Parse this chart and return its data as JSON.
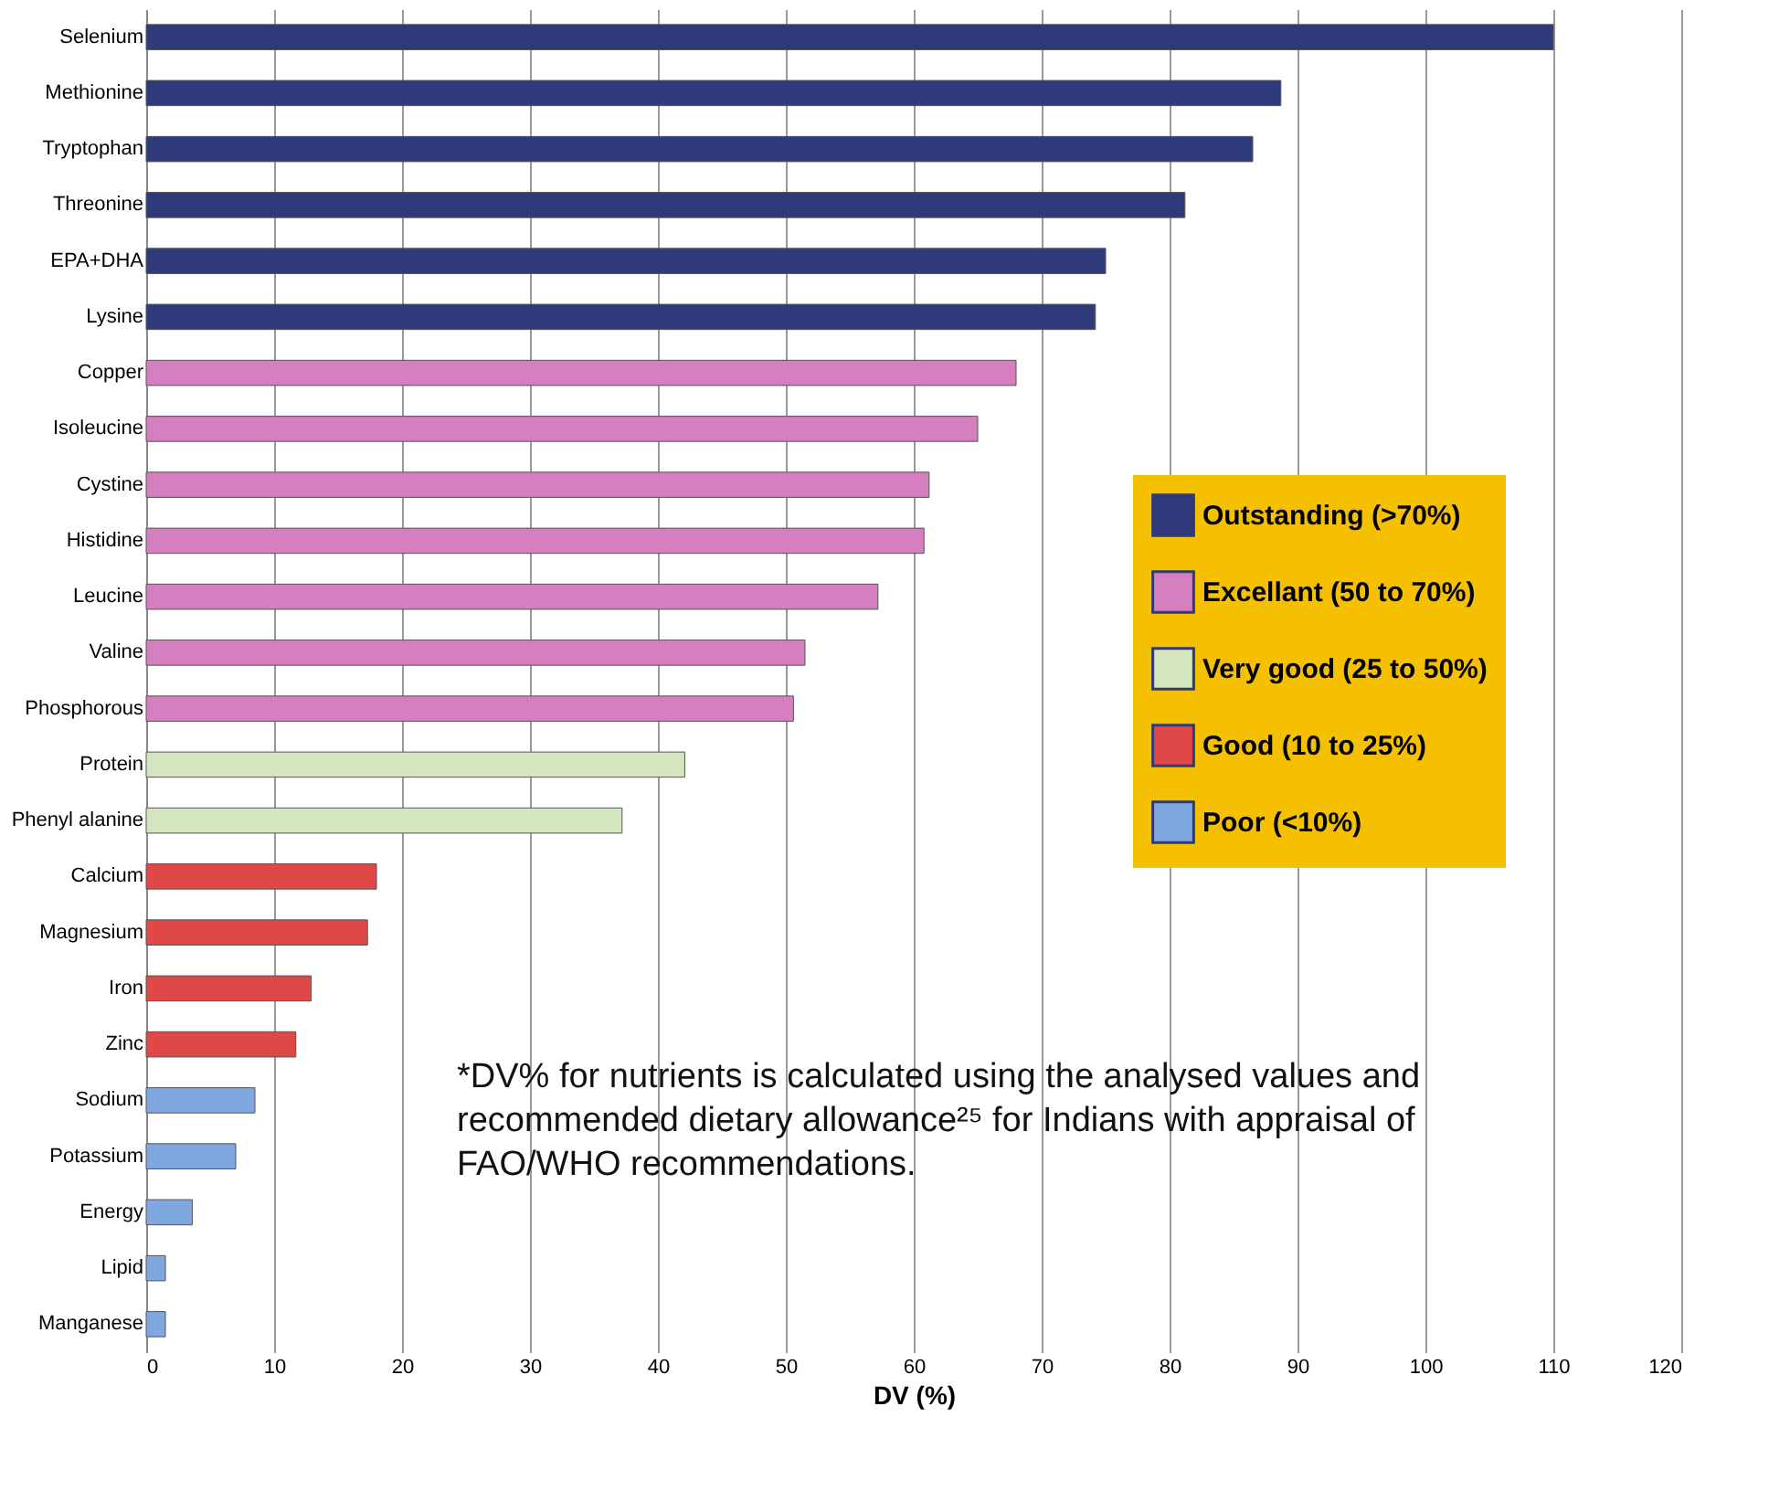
{
  "chart_data": {
    "type": "bar",
    "orientation": "horizontal",
    "xlabel": "DV (%)",
    "categories": [
      "Selenium",
      "Methionine",
      "Tryptophan",
      "Threonine",
      "EPA+DHA",
      "Lysine",
      "Copper",
      "Isoleucine",
      "Cystine",
      "Histidine",
      "Leucine",
      "Valine",
      "Phosphorous",
      "Protein",
      "Phenyl alanine",
      "Calcium",
      "Magnesium",
      "Iron",
      "Zinc",
      "Sodium",
      "Potassium",
      "Energy",
      "Lipid",
      "Manganese"
    ],
    "series": [
      {
        "name": "Outstanding (>70%)",
        "color": "#2e3a7a",
        "values": [
          110,
          88.7,
          86.5,
          81.2,
          75.0,
          74.2,
          null,
          null,
          null,
          null,
          null,
          null,
          null,
          null,
          null,
          null,
          null,
          null,
          null,
          null,
          null,
          null,
          null,
          null
        ]
      },
      {
        "name": "Excellant (50 to 70%)",
        "color": "#d67fc0",
        "values": [
          null,
          null,
          null,
          null,
          null,
          null,
          68.0,
          65.0,
          61.2,
          60.8,
          57.2,
          51.5,
          50.6,
          null,
          null,
          null,
          null,
          null,
          null,
          null,
          null,
          null,
          null,
          null
        ]
      },
      {
        "name": "Very good (25 to 50%)",
        "color": "#d3e6bd",
        "values": [
          null,
          null,
          null,
          null,
          null,
          null,
          null,
          null,
          null,
          null,
          null,
          null,
          null,
          42.1,
          37.2,
          null,
          null,
          null,
          null,
          null,
          null,
          null,
          null,
          null
        ]
      },
      {
        "name": "Good (10 to 25%)",
        "color": "#e04848",
        "values": [
          null,
          null,
          null,
          null,
          null,
          null,
          null,
          null,
          null,
          null,
          null,
          null,
          null,
          null,
          null,
          18.0,
          17.3,
          12.9,
          11.7,
          null,
          null,
          null,
          null,
          null
        ]
      },
      {
        "name": "Poor (<10%)",
        "color": "#7fa8e0",
        "values": [
          null,
          null,
          null,
          null,
          null,
          null,
          null,
          null,
          null,
          null,
          null,
          null,
          null,
          null,
          null,
          null,
          null,
          null,
          null,
          8.5,
          7.0,
          3.6,
          1.5,
          1.5
        ]
      }
    ],
    "xlim": [
      0,
      120
    ],
    "xticks": [
      0,
      10,
      20,
      30,
      40,
      50,
      60,
      70,
      80,
      90,
      100,
      110,
      120
    ],
    "grid": "x",
    "legend": "right",
    "annotations": [
      {
        "text": "*DV% for nutrients is calculated using the analysed values and recommended dietary allowance²⁵ for Indians with appraisal of FAO/WHO recommendations."
      }
    ]
  }
}
